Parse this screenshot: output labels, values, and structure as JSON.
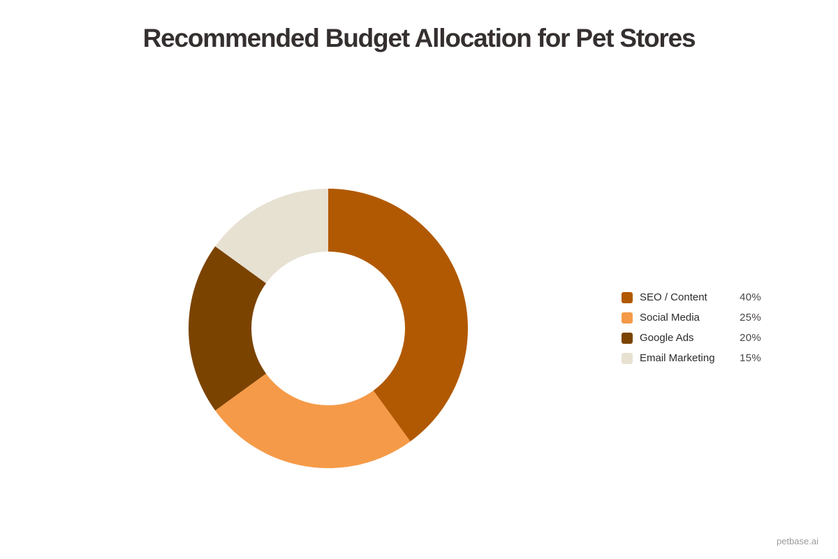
{
  "title": "Recommended Budget Allocation for Pet Stores",
  "watermark": "petbase.ai",
  "legend": {
    "items": [
      {
        "label": "SEO / Content",
        "value": "40%",
        "color": "#b15902"
      },
      {
        "label": "Social Media",
        "value": "25%",
        "color": "#f59a48"
      },
      {
        "label": "Google Ads",
        "value": "20%",
        "color": "#7b4300"
      },
      {
        "label": "Email Marketing",
        "value": "15%",
        "color": "#e7e1d2"
      }
    ]
  },
  "chart_data": {
    "type": "pie",
    "variant": "donut",
    "title": "Recommended Budget Allocation for Pet Stores",
    "categories": [
      "SEO / Content",
      "Social Media",
      "Google Ads",
      "Email Marketing"
    ],
    "values": [
      40,
      25,
      20,
      15
    ],
    "unit": "%",
    "colors": [
      "#b15902",
      "#f59a48",
      "#7b4300",
      "#e7e1d2"
    ],
    "start_angle": "12 o'clock",
    "direction": "clockwise",
    "legend_position": "right",
    "xlabel": "",
    "ylabel": ""
  }
}
